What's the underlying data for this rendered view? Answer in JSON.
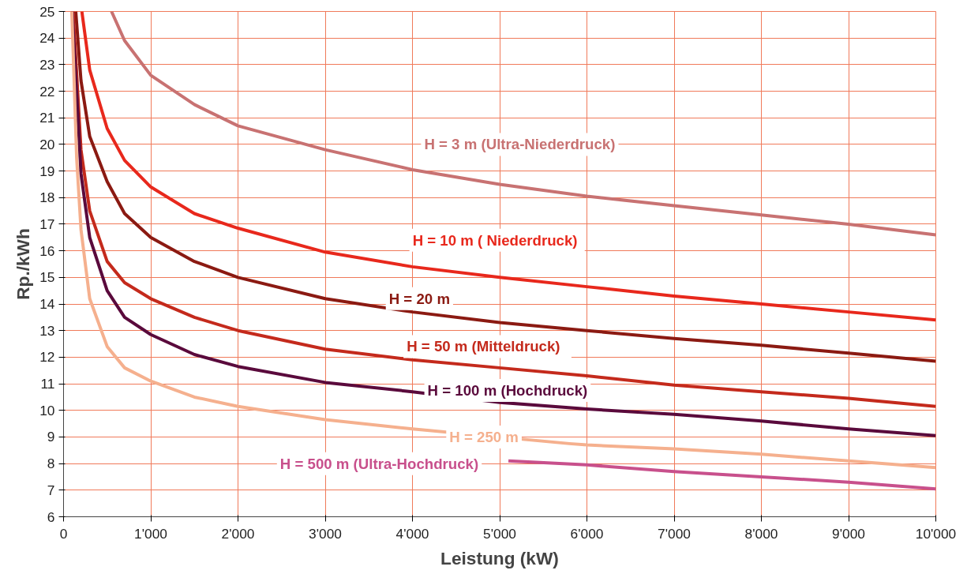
{
  "chart_data": {
    "type": "line",
    "xlabel": "Leistung (kW)",
    "ylabel": "Rp./kWh",
    "xlim": [
      0,
      10000
    ],
    "ylim": [
      6,
      25
    ],
    "xticks": [
      0,
      {
        "value": 1000,
        "label": "1'000"
      },
      {
        "value": 2000,
        "label": "2'000"
      },
      {
        "value": 3000,
        "label": "3'000"
      },
      {
        "value": 4000,
        "label": "4'000"
      },
      {
        "value": 5000,
        "label": "5'000"
      },
      {
        "value": 6000,
        "label": "6'000"
      },
      {
        "value": 7000,
        "label": "7'000"
      },
      {
        "value": 8000,
        "label": "8'000"
      },
      {
        "value": 9000,
        "label": "9'000"
      },
      {
        "value": 10000,
        "label": "10'000"
      }
    ],
    "yticks": [
      6,
      7,
      8,
      9,
      10,
      11,
      12,
      13,
      14,
      15,
      16,
      17,
      18,
      19,
      20,
      21,
      22,
      23,
      24,
      25
    ],
    "grid": true,
    "series": [
      {
        "name": "H = 3 m (Ultra-Niederdruck)",
        "color": "#c87272",
        "x": [
          550,
          700,
          1000,
          1500,
          2000,
          3000,
          4000,
          5000,
          6000,
          7000,
          8000,
          9000,
          10000
        ],
        "values": [
          25,
          23.9,
          22.6,
          21.5,
          20.7,
          19.8,
          19.05,
          18.5,
          18.05,
          17.7,
          17.35,
          17.0,
          16.6
        ]
      },
      {
        "name": "H = 10 m  ( Niederdruck)",
        "color": "#e8281c",
        "x": [
          210,
          300,
          500,
          700,
          1000,
          1500,
          2000,
          3000,
          4000,
          5000,
          6000,
          7000,
          8000,
          9000,
          10000
        ],
        "values": [
          25,
          22.8,
          20.6,
          19.4,
          18.4,
          17.4,
          16.85,
          15.95,
          15.4,
          15.0,
          14.65,
          14.3,
          14.0,
          13.7,
          13.4
        ]
      },
      {
        "name": "H = 20 m",
        "color": "#8b1a12",
        "x": [
          140,
          200,
          300,
          500,
          700,
          1000,
          1500,
          2000,
          3000,
          4000,
          5000,
          6000,
          7000,
          8000,
          9000,
          10000
        ],
        "values": [
          25,
          22.4,
          20.3,
          18.6,
          17.4,
          16.5,
          15.6,
          15.0,
          14.2,
          13.7,
          13.3,
          13.0,
          12.7,
          12.45,
          12.15,
          11.85
        ]
      },
      {
        "name": "H = 50 m   (Mitteldruck)",
        "color": "#c42a1c",
        "x": [
          110,
          200,
          300,
          500,
          700,
          1000,
          1500,
          2000,
          3000,
          4000,
          5000,
          6000,
          7000,
          8000,
          9000,
          10000
        ],
        "values": [
          25,
          19.8,
          17.5,
          15.6,
          14.8,
          14.2,
          13.5,
          13.0,
          12.3,
          11.9,
          11.6,
          11.3,
          10.95,
          10.7,
          10.45,
          10.15
        ]
      },
      {
        "name": "H = 100 m (Hochdruck)",
        "color": "#5a0a3c",
        "x": [
          100,
          200,
          300,
          500,
          700,
          1000,
          1500,
          2000,
          3000,
          4000,
          5000,
          6000,
          7000,
          8000,
          9000,
          10000
        ],
        "values": [
          25,
          18.9,
          16.5,
          14.5,
          13.5,
          12.85,
          12.1,
          11.65,
          11.05,
          10.7,
          10.3,
          10.05,
          9.85,
          9.6,
          9.3,
          9.05
        ]
      },
      {
        "name": "H = 250 m",
        "color": "#f5b08e",
        "x": [
          95,
          150,
          200,
          300,
          500,
          700,
          1000,
          1500,
          2000,
          3000,
          4000,
          5800,
          6000,
          7000,
          8000,
          9000,
          10000
        ],
        "values": [
          25,
          19.5,
          16.8,
          14.2,
          12.4,
          11.6,
          11.1,
          10.5,
          10.15,
          9.65,
          9.3,
          8.75,
          8.7,
          8.55,
          8.35,
          8.1,
          7.85
        ]
      },
      {
        "name": "H = 500 m (Ultra-Hochdruck)",
        "color": "#c8508c",
        "x": [
          5100,
          6000,
          7000,
          8000,
          9000,
          10000
        ],
        "values": [
          8.1,
          7.95,
          7.7,
          7.5,
          7.3,
          7.05
        ]
      }
    ]
  }
}
